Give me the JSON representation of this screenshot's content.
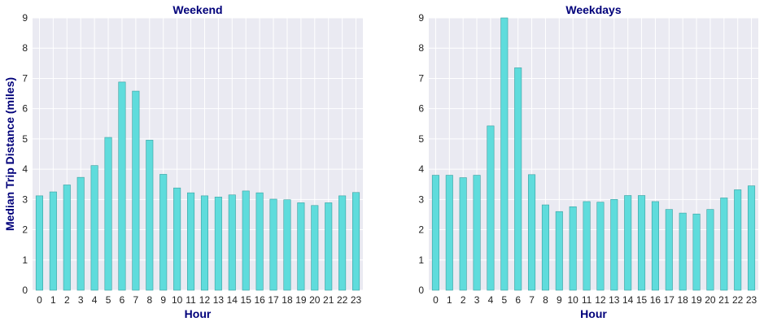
{
  "colors": {
    "bar_fill": "#5fdcdc",
    "bar_stroke": "#3aa0a0",
    "plot_background": "#eaeaf2",
    "grid": "#ffffff",
    "title_color": "#00007a"
  },
  "chart_data": [
    {
      "type": "bar",
      "title": "Weekend",
      "xlabel": "Hour",
      "ylabel": "Median Trip Distance (miles)",
      "ylim": [
        0,
        9
      ],
      "yticks": [
        0,
        1,
        2,
        3,
        4,
        5,
        6,
        7,
        8,
        9
      ],
      "grid": true,
      "categories": [
        "0",
        "1",
        "2",
        "3",
        "4",
        "5",
        "6",
        "7",
        "8",
        "9",
        "10",
        "11",
        "12",
        "13",
        "14",
        "15",
        "16",
        "17",
        "18",
        "19",
        "20",
        "21",
        "22",
        "23"
      ],
      "values": [
        3.12,
        3.25,
        3.48,
        3.73,
        4.12,
        5.05,
        6.88,
        6.58,
        4.96,
        3.83,
        3.38,
        3.22,
        3.12,
        3.08,
        3.15,
        3.28,
        3.22,
        3.01,
        2.99,
        2.89,
        2.8,
        2.89,
        3.12,
        3.23
      ]
    },
    {
      "type": "bar",
      "title": "Weekdays",
      "xlabel": "Hour",
      "ylabel": "",
      "ylim": [
        0,
        9
      ],
      "yticks": [
        0,
        1,
        2,
        3,
        4,
        5,
        6,
        7,
        8,
        9
      ],
      "grid": true,
      "categories": [
        "0",
        "1",
        "2",
        "3",
        "4",
        "5",
        "6",
        "7",
        "8",
        "9",
        "10",
        "11",
        "12",
        "13",
        "14",
        "15",
        "16",
        "17",
        "18",
        "19",
        "20",
        "21",
        "22",
        "23"
      ],
      "values": [
        3.8,
        3.8,
        3.72,
        3.8,
        5.43,
        9.0,
        7.35,
        3.82,
        2.82,
        2.6,
        2.76,
        2.93,
        2.91,
        3.0,
        3.13,
        3.13,
        2.93,
        2.67,
        2.55,
        2.52,
        2.67,
        3.05,
        3.32,
        3.45
      ]
    }
  ]
}
